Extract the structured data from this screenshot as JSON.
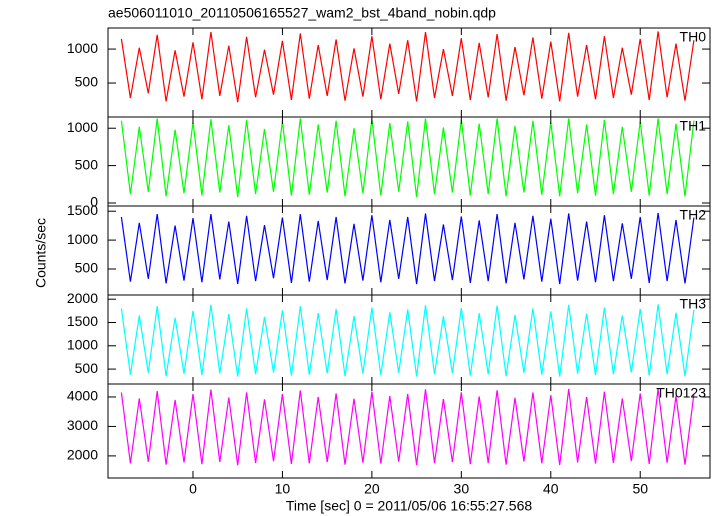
{
  "chart_data": {
    "type": "line",
    "title": "ae506011010_20110506165527_wam2_bst_4band_nobin.qdp",
    "xlabel": "Time [sec] 0 = 2011/05/06 16:55:27.568",
    "ylabel": "Counts/sec",
    "xlim": [
      -9.5,
      57.8
    ],
    "xticks": [
      0,
      10,
      20,
      30,
      40,
      50
    ],
    "x": [
      -8,
      -7,
      -6,
      -5,
      -4,
      -3,
      -2,
      -1,
      0,
      1,
      2,
      3,
      4,
      5,
      6,
      7,
      8,
      9,
      10,
      11,
      12,
      13,
      14,
      15,
      16,
      17,
      18,
      19,
      20,
      21,
      22,
      23,
      24,
      25,
      26,
      27,
      28,
      29,
      30,
      31,
      32,
      33,
      34,
      35,
      36,
      37,
      38,
      39,
      40,
      41,
      42,
      43,
      44,
      45,
      46,
      47,
      48,
      49,
      50,
      51,
      52,
      53,
      54,
      55,
      56
    ],
    "series": [
      {
        "name": "TH0",
        "color": "#ff0000",
        "ylim": [
          0,
          1310
        ],
        "yticks": [
          500,
          1000
        ],
        "values": [
          1150,
          280,
          1020,
          350,
          1210,
          230,
          980,
          300,
          1100,
          260,
          1250,
          310,
          1050,
          220,
          1180,
          290,
          990,
          330,
          1120,
          250,
          1230,
          270,
          1060,
          310,
          1140,
          240,
          1010,
          300,
          1190,
          260,
          1080,
          340,
          1130,
          230,
          1250,
          280,
          1000,
          310,
          1160,
          250,
          1090,
          290,
          1220,
          240,
          1030,
          320,
          1170,
          270,
          1110,
          230,
          1240,
          300,
          1060,
          260,
          1190,
          280,
          1020,
          330,
          1150,
          250,
          1260,
          290,
          1080,
          240,
          1130
        ]
      },
      {
        "name": "TH1",
        "color": "#00ff00",
        "ylim": [
          -40,
          1150
        ],
        "yticks": [
          0,
          500,
          1000
        ],
        "values": [
          1100,
          120,
          1020,
          150,
          1130,
          90,
          980,
          130,
          1080,
          100,
          1120,
          140,
          1040,
          80,
          1110,
          120,
          990,
          150,
          1090,
          100,
          1130,
          110,
          1050,
          140,
          1100,
          90,
          1000,
          130,
          1120,
          100,
          1070,
          150,
          1090,
          80,
          1130,
          120,
          1010,
          140,
          1110,
          100,
          1060,
          120,
          1130,
          90,
          1030,
          140,
          1100,
          110,
          1080,
          90,
          1130,
          130,
          1050,
          100,
          1110,
          120,
          1020,
          150,
          1090,
          100,
          1130,
          120,
          1060,
          90,
          1100
        ]
      },
      {
        "name": "TH2",
        "color": "#0000ff",
        "ylim": [
          50,
          1590
        ],
        "yticks": [
          500,
          1000,
          1500
        ],
        "values": [
          1400,
          280,
          1300,
          330,
          1450,
          250,
          1250,
          300,
          1380,
          270,
          1450,
          320,
          1320,
          240,
          1420,
          290,
          1260,
          340,
          1390,
          260,
          1450,
          280,
          1330,
          310,
          1400,
          250,
          1280,
          300,
          1430,
          270,
          1350,
          330,
          1400,
          240,
          1460,
          290,
          1270,
          310,
          1410,
          260,
          1340,
          290,
          1450,
          250,
          1300,
          320,
          1420,
          280,
          1370,
          240,
          1460,
          300,
          1320,
          270,
          1430,
          290,
          1290,
          330,
          1400,
          260,
          1470,
          290,
          1350,
          250,
          1390
        ]
      },
      {
        "name": "TH3",
        "color": "#00ffff",
        "ylim": [
          180,
          2090
        ],
        "yticks": [
          500,
          1000,
          1500,
          2000
        ],
        "values": [
          1800,
          380,
          1650,
          420,
          1850,
          350,
          1600,
          400,
          1750,
          370,
          1880,
          410,
          1680,
          340,
          1800,
          390,
          1620,
          430,
          1760,
          360,
          1850,
          380,
          1700,
          410,
          1790,
          350,
          1640,
          400,
          1820,
          370,
          1720,
          420,
          1780,
          340,
          1870,
          390,
          1630,
          410,
          1810,
          360,
          1700,
          390,
          1860,
          350,
          1660,
          420,
          1800,
          380,
          1740,
          340,
          1880,
          400,
          1690,
          370,
          1820,
          390,
          1650,
          430,
          1790,
          360,
          1890,
          390,
          1710,
          350,
          1770
        ]
      },
      {
        "name": "TH0123",
        "color": "#ff00ff",
        "ylim": [
          1250,
          4440
        ],
        "yticks": [
          2000,
          3000,
          4000
        ],
        "values": [
          4150,
          1750,
          3950,
          1800,
          4200,
          1700,
          3900,
          1780,
          4100,
          1720,
          4250,
          1790,
          3980,
          1680,
          4150,
          1760,
          3920,
          1820,
          4100,
          1730,
          4220,
          1750,
          4000,
          1790,
          4120,
          1700,
          3940,
          1770,
          4180,
          1740,
          4030,
          1800,
          4100,
          1690,
          4260,
          1760,
          3930,
          1790,
          4160,
          1720,
          4020,
          1760,
          4230,
          1700,
          3970,
          1810,
          4150,
          1750,
          4060,
          1690,
          4270,
          1780,
          4000,
          1740,
          4180,
          1760,
          3950,
          1820,
          4120,
          1730,
          4280,
          1770,
          4040,
          1700,
          4100
        ]
      }
    ]
  }
}
